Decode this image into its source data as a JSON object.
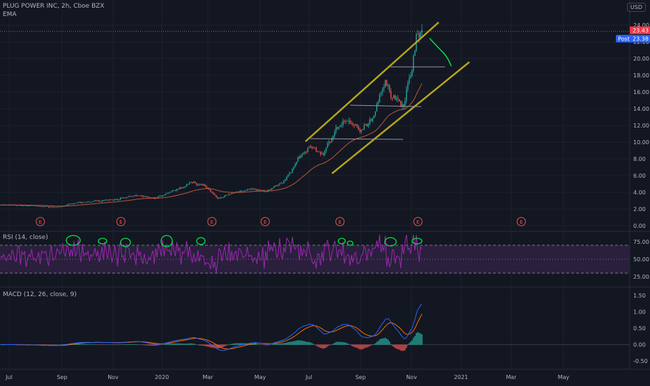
{
  "header": {
    "symbol_line": "PLUG POWER INC, 2h, Cboe BZX",
    "ema_label": "EMA",
    "currency": "USD"
  },
  "colors": {
    "background": "#131722",
    "grid": "#1e222d",
    "axis_text": "#b2b5be",
    "candle_up": "#26a69a",
    "candle_down": "#ef5350",
    "ema": "#c0563a",
    "channel": "#b5a51a",
    "annotation": "#00e640",
    "rsi_line": "#9c27b0",
    "rsi_band": "#2a1f3d",
    "macd_line": "#2962ff",
    "signal_line": "#ff6d00",
    "price_badge": "#f23645",
    "post_badge": "#2962ff"
  },
  "price_badges": {
    "last": "23.43",
    "post_label": "Post",
    "post": "23.38"
  },
  "earnings_marker": "E",
  "chart_data": [
    {
      "type": "candlestick",
      "name": "price",
      "x_ticks": [
        "Jul",
        "Sep",
        "Nov",
        "2020",
        "Mar",
        "May",
        "Jul",
        "Sep",
        "Nov",
        "2021",
        "Mar",
        "May"
      ],
      "ylim": [
        0,
        24
      ],
      "y_ticks": [
        "24.00",
        "22.00",
        "20.00",
        "18.00",
        "16.00",
        "14.00",
        "12.00",
        "10.00",
        "8.00",
        "6.00",
        "4.00",
        "2.00",
        "0.00"
      ],
      "overlays": [
        "EMA"
      ],
      "close_approx": [
        [
          0.0,
          2.5
        ],
        [
          0.05,
          2.4
        ],
        [
          0.09,
          2.2
        ],
        [
          0.12,
          2.7
        ],
        [
          0.16,
          3.0
        ],
        [
          0.19,
          3.2
        ],
        [
          0.22,
          3.6
        ],
        [
          0.25,
          3.3
        ],
        [
          0.28,
          4.2
        ],
        [
          0.31,
          5.2
        ],
        [
          0.33,
          4.8
        ],
        [
          0.35,
          3.2
        ],
        [
          0.37,
          3.8
        ],
        [
          0.4,
          4.4
        ],
        [
          0.43,
          4.1
        ],
        [
          0.46,
          5.5
        ],
        [
          0.48,
          8.0
        ],
        [
          0.5,
          9.5
        ],
        [
          0.52,
          8.5
        ],
        [
          0.54,
          11.5
        ],
        [
          0.56,
          12.5
        ],
        [
          0.58,
          11.5
        ],
        [
          0.6,
          12.8
        ],
        [
          0.62,
          17.5
        ],
        [
          0.63,
          15.5
        ],
        [
          0.65,
          14.5
        ],
        [
          0.66,
          17.5
        ],
        [
          0.67,
          22.0
        ],
        [
          0.68,
          23.43
        ]
      ],
      "earnings_positions": [
        0.062,
        0.186,
        0.326,
        0.408,
        0.523,
        0.643,
        0.802
      ]
    },
    {
      "type": "line",
      "name": "RSI (14, close)",
      "ylim": [
        10,
        90
      ],
      "y_ticks": [
        "75.00",
        "50.00",
        "25.00"
      ],
      "band": [
        30,
        70
      ]
    },
    {
      "type": "line",
      "name": "MACD (12, 26, close, 9)",
      "ylim": [
        -0.75,
        1.75
      ],
      "y_ticks": [
        "1.50",
        "1.00",
        "0.50",
        "0.00",
        "-0.50"
      ]
    }
  ]
}
